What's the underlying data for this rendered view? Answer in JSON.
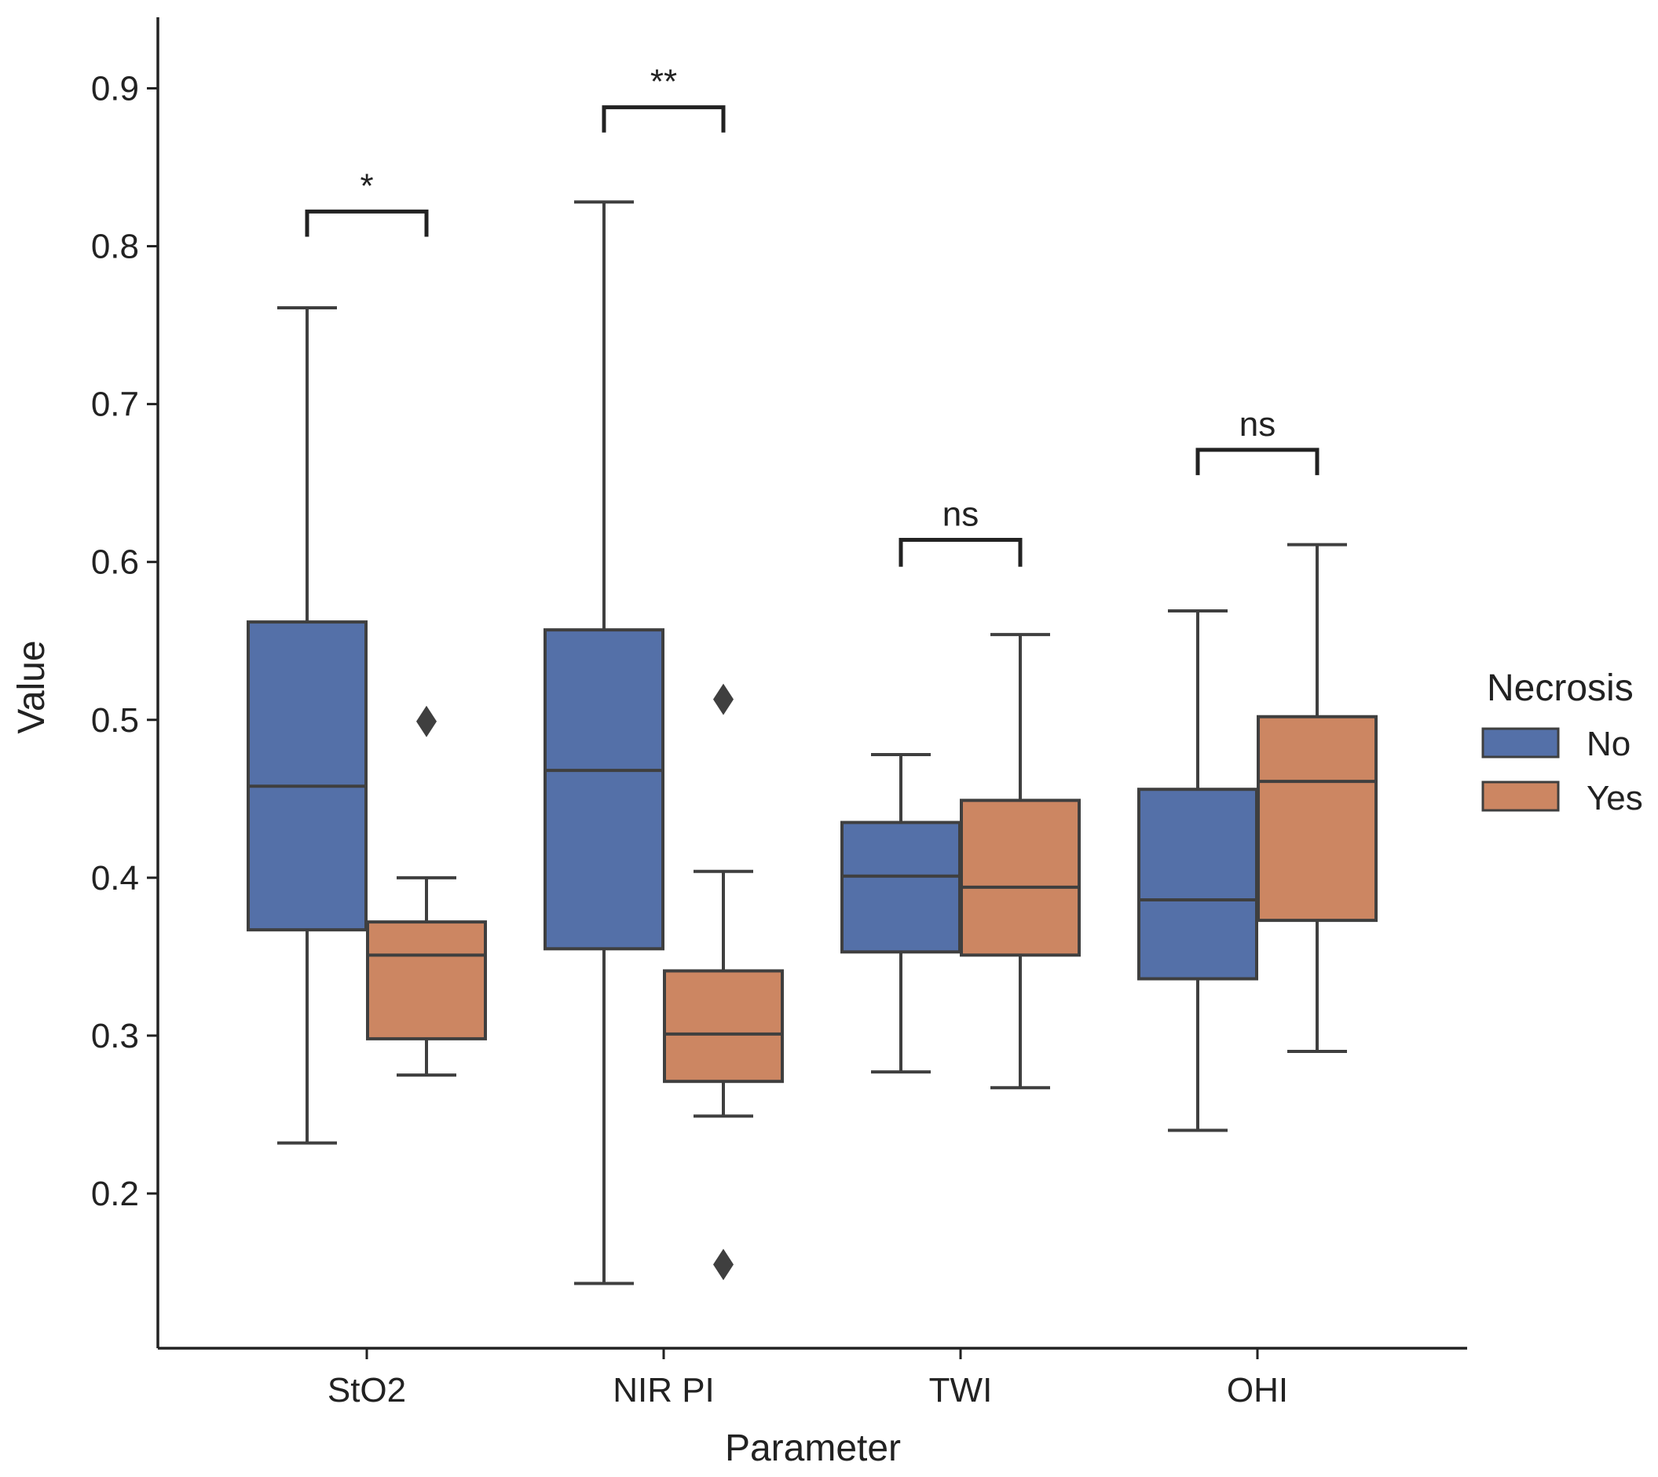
{
  "chart_data": {
    "type": "boxplot",
    "title": "",
    "xlabel": "Parameter",
    "ylabel": "Value",
    "ylim": [
      0.102,
      0.945
    ],
    "yticks": [
      0.2,
      0.3,
      0.4,
      0.5,
      0.6,
      0.7,
      0.8,
      0.9
    ],
    "ytick_labels": [
      "0.2",
      "0.3",
      "0.4",
      "0.5",
      "0.6",
      "0.7",
      "0.8",
      "0.9"
    ],
    "categories": [
      "StO2",
      "NIR PI",
      "TWI",
      "OHI"
    ],
    "legend": {
      "title": "Necrosis",
      "position": "right"
    },
    "series": [
      {
        "name": "No",
        "color": "#5470a8",
        "boxes": [
          {
            "whisker_low": 0.232,
            "q1": 0.367,
            "median": 0.458,
            "q3": 0.562,
            "whisker_high": 0.761,
            "outliers": []
          },
          {
            "whisker_low": 0.143,
            "q1": 0.355,
            "median": 0.468,
            "q3": 0.557,
            "whisker_high": 0.828,
            "outliers": []
          },
          {
            "whisker_low": 0.277,
            "q1": 0.353,
            "median": 0.401,
            "q3": 0.435,
            "whisker_high": 0.478,
            "outliers": []
          },
          {
            "whisker_low": 0.24,
            "q1": 0.336,
            "median": 0.386,
            "q3": 0.456,
            "whisker_high": 0.569,
            "outliers": []
          }
        ]
      },
      {
        "name": "Yes",
        "color": "#cc8662",
        "boxes": [
          {
            "whisker_low": 0.275,
            "q1": 0.298,
            "median": 0.351,
            "q3": 0.372,
            "whisker_high": 0.4,
            "outliers": [
              0.499
            ]
          },
          {
            "whisker_low": 0.249,
            "q1": 0.271,
            "median": 0.301,
            "q3": 0.341,
            "whisker_high": 0.404,
            "outliers": [
              0.513,
              0.155
            ]
          },
          {
            "whisker_low": 0.267,
            "q1": 0.351,
            "median": 0.394,
            "q3": 0.449,
            "whisker_high": 0.554,
            "outliers": []
          },
          {
            "whisker_low": 0.29,
            "q1": 0.373,
            "median": 0.461,
            "q3": 0.502,
            "whisker_high": 0.611,
            "outliers": []
          }
        ]
      }
    ],
    "annotations": [
      {
        "category": "StO2",
        "label": "*",
        "bracket_y": 0.822,
        "drop_y": 0.806
      },
      {
        "category": "NIR PI",
        "label": "**",
        "bracket_y": 0.888,
        "drop_y": 0.872
      },
      {
        "category": "TWI",
        "label": "ns",
        "bracket_y": 0.614,
        "drop_y": 0.597
      },
      {
        "category": "OHI",
        "label": "ns",
        "bracket_y": 0.671,
        "drop_y": 0.655
      }
    ],
    "colors": {
      "axis": "#222222",
      "box_edge": "#3f3f3f",
      "bracket": "#222222"
    }
  }
}
